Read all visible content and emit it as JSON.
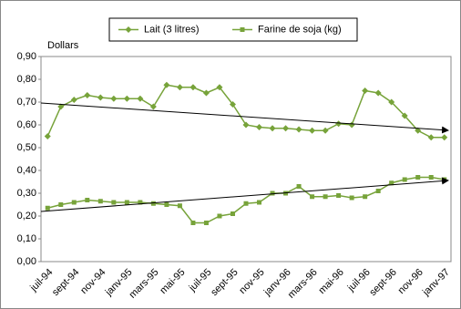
{
  "chart_data": {
    "type": "line",
    "y_label": "Dollars",
    "categories": [
      "juil-94",
      null,
      "sept-94",
      null,
      "nov-94",
      null,
      "janv-95",
      null,
      "mars-95",
      null,
      "mai-95",
      null,
      "juil-95",
      null,
      "sept-95",
      null,
      "nov-95",
      null,
      "janv-96",
      null,
      "mars-96",
      null,
      "mai-96",
      null,
      "juil-96",
      null,
      "sept-96",
      null,
      "nov-96",
      null,
      "janv-97"
    ],
    "series": [
      {
        "name": "Lait (3 litres)",
        "color": "#77a33a",
        "marker": "diamond",
        "values": [
          0.55,
          0.68,
          0.71,
          0.73,
          0.72,
          0.715,
          0.715,
          0.715,
          0.68,
          0.775,
          0.765,
          0.765,
          0.74,
          0.765,
          0.69,
          0.6,
          0.59,
          0.585,
          0.585,
          0.58,
          0.575,
          0.575,
          0.605,
          0.6,
          0.75,
          0.74,
          0.7,
          0.64,
          0.575,
          0.545,
          0.545
        ]
      },
      {
        "name": "Farine de soja (kg)",
        "color": "#77a33a",
        "marker": "square",
        "values": [
          0.235,
          0.25,
          0.26,
          0.27,
          0.265,
          0.26,
          0.26,
          0.26,
          0.255,
          0.25,
          0.245,
          0.17,
          0.17,
          0.2,
          0.21,
          0.255,
          0.26,
          0.3,
          0.3,
          0.33,
          0.285,
          0.285,
          0.29,
          0.28,
          0.285,
          0.31,
          0.345,
          0.36,
          0.37,
          0.37,
          0.36
        ]
      }
    ],
    "ylim": [
      0,
      0.9
    ],
    "yticks": [
      {
        "value": 0,
        "label": "0,00"
      },
      {
        "value": 0.1,
        "label": "0,10"
      },
      {
        "value": 0.2,
        "label": "0,20"
      },
      {
        "value": 0.3,
        "label": "0,30"
      },
      {
        "value": 0.4,
        "label": "0,40"
      },
      {
        "value": 0.5,
        "label": "0,50"
      },
      {
        "value": 0.6,
        "label": "0,60"
      },
      {
        "value": 0.7,
        "label": "0,70"
      },
      {
        "value": 0.8,
        "label": "0,80"
      },
      {
        "value": 0.9,
        "label": "0,90"
      }
    ],
    "grid": false,
    "legend": "top"
  }
}
